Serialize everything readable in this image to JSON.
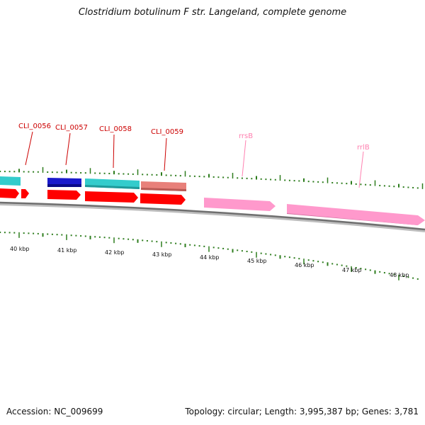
{
  "title": "Clostridium botulinum F str. Langeland, complete genome",
  "footer": {
    "accession": "Accession: NC_009699",
    "summary": "Topology: circular; Length: 3,995,387 bp; Genes: 3,781"
  },
  "colors": {
    "gene_red": "#ff0000",
    "cds_cyan": "#33cccc",
    "cds_blue": "#1a1acc",
    "cds_salmon": "#e8807a",
    "rrna_pink": "#ff99cc",
    "label_red": "#cc0000",
    "label_pink": "#ff80b0",
    "tick_green": "#2e7d1e",
    "backbone": "#777777"
  },
  "scale": {
    "unit": "kbp",
    "labels": [
      "40 kbp",
      "41 kbp",
      "42 kbp",
      "43 kbp",
      "44 kbp",
      "45 kbp",
      "46 kbp",
      "47 kbp",
      "48 kbp"
    ]
  },
  "gene_labels": [
    {
      "text": "CLI_0056",
      "type": "cds"
    },
    {
      "text": "CLI_0057",
      "type": "cds"
    },
    {
      "text": "CLI_0058",
      "type": "cds"
    },
    {
      "text": "CLI_0059",
      "type": "cds"
    },
    {
      "text": "rrsB",
      "type": "rrna"
    },
    {
      "text": "rrlB",
      "type": "rrna"
    }
  ]
}
